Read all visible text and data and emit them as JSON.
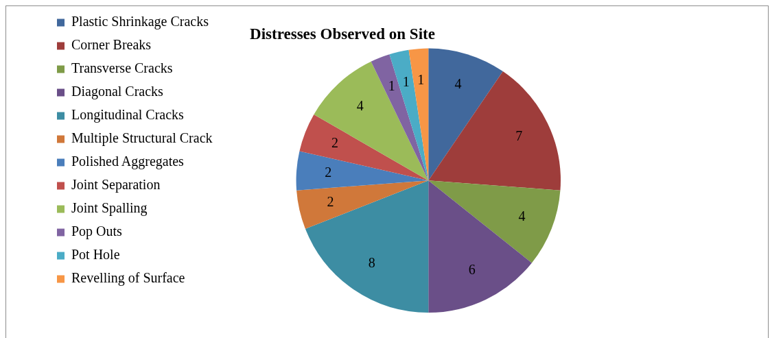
{
  "chart_data": {
    "type": "pie",
    "title": "Distresses Observed on Site",
    "categories": [
      "Plastic Shrinkage Cracks",
      "Corner Breaks",
      "Transverse Cracks",
      "Diagonal Cracks",
      "Longitudinal Cracks",
      "Multiple Structural Crack",
      "Polished Aggregates",
      "Joint Separation",
      "Joint Spalling",
      "Pop Outs",
      "Pot Hole",
      "Revelling of Surface"
    ],
    "values": [
      4,
      7,
      4,
      6,
      8,
      2,
      2,
      2,
      4,
      1,
      1,
      1
    ],
    "colors": [
      "#41689c",
      "#9e3d3b",
      "#7f9b48",
      "#6a4f88",
      "#3d8da3",
      "#d0783a",
      "#4a7ebb",
      "#c0504d",
      "#9bbb59",
      "#8064a2",
      "#4bacc6",
      "#f79646"
    ],
    "data_labels": true,
    "legend": "left"
  }
}
